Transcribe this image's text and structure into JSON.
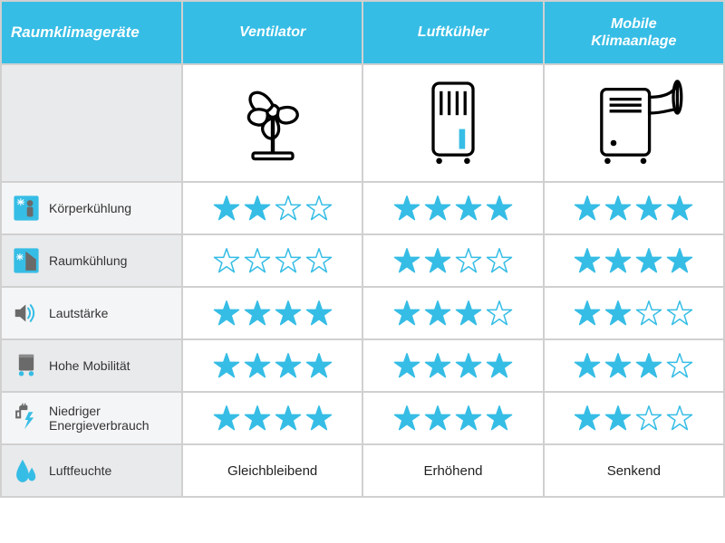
{
  "colors": {
    "accent": "#36bde5",
    "star_filled": "#36bde5",
    "star_empty_stroke": "#36bde5",
    "header_text": "#ffffff",
    "row_dark": "#e9eaec",
    "row_light": "#f4f5f6",
    "border": "#d0d0d0",
    "text": "#333333"
  },
  "header": {
    "title": "Raumklimageräte",
    "col1": "Ventilator",
    "col2": "Luftkühler",
    "col3": "Mobile Klimaanlage"
  },
  "devices": {
    "ventilator": {
      "icon": "fan"
    },
    "luftkuehler": {
      "icon": "cooler"
    },
    "mobile": {
      "icon": "ac-unit"
    }
  },
  "rows": [
    {
      "icon": "person-cool",
      "label": "Körperkühlung",
      "values": [
        2,
        4,
        4
      ]
    },
    {
      "icon": "house-cool",
      "label": "Raumkühlung",
      "values": [
        0,
        2,
        4
      ]
    },
    {
      "icon": "volume",
      "label": "Lautstärke",
      "values": [
        4,
        3,
        2
      ]
    },
    {
      "icon": "mobility",
      "label": "Hohe Mobilität",
      "values": [
        4,
        4,
        3
      ]
    },
    {
      "icon": "energy",
      "label": "Niedriger Energieverbrauch",
      "values": [
        4,
        4,
        2
      ]
    },
    {
      "icon": "humidity",
      "label": "Luftfeuchte",
      "text": [
        "Gleichbleibend",
        "Erhöhend",
        "Senkend"
      ]
    }
  ],
  "star_max": 4
}
